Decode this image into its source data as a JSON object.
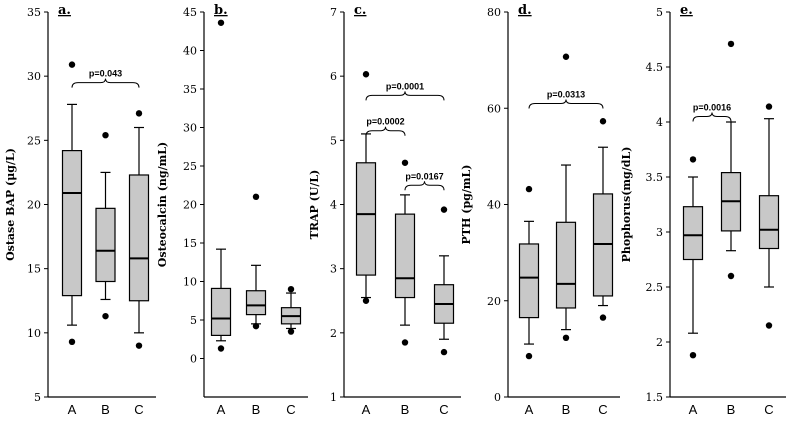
{
  "chart_data": [
    {
      "type": "box",
      "panel_label": "a.",
      "ylabel": "Ostase BAP (μg/L)",
      "ylim": [
        5,
        35
      ],
      "yticks": [
        5,
        10,
        15,
        20,
        25,
        30,
        35
      ],
      "categories": [
        "A",
        "B",
        "C"
      ],
      "boxes": [
        {
          "q1": 12.9,
          "median": 20.9,
          "q3": 24.2,
          "whisker_low": 10.6,
          "whisker_high": 27.8,
          "outliers": [
            9.3,
            30.9
          ]
        },
        {
          "q1": 14.0,
          "median": 16.4,
          "q3": 19.7,
          "whisker_low": 12.6,
          "whisker_high": 22.5,
          "outliers": [
            11.3,
            25.4
          ]
        },
        {
          "q1": 12.5,
          "median": 15.8,
          "q3": 22.3,
          "whisker_low": 10.0,
          "whisker_high": 26.0,
          "outliers": [
            9.0,
            27.1
          ]
        }
      ],
      "comparisons": [
        {
          "from": 0,
          "to": 2,
          "y": 29.5,
          "label": "p=0.043"
        }
      ]
    },
    {
      "type": "box",
      "panel_label": "b.",
      "ylabel": "Osteocalcin (ng/mL)",
      "ylim": [
        -5,
        45
      ],
      "yticks": [
        0,
        5,
        10,
        15,
        20,
        25,
        30,
        35,
        40,
        45
      ],
      "categories": [
        "A",
        "B",
        "C"
      ],
      "boxes": [
        {
          "q1": 3.0,
          "median": 5.2,
          "q3": 9.1,
          "whisker_low": 2.3,
          "whisker_high": 14.2,
          "outliers": [
            1.3,
            43.6
          ]
        },
        {
          "q1": 5.7,
          "median": 6.9,
          "q3": 8.8,
          "whisker_low": 4.5,
          "whisker_high": 12.1,
          "outliers": [
            4.2,
            21.0
          ]
        },
        {
          "q1": 4.5,
          "median": 5.5,
          "q3": 6.6,
          "whisker_low": 3.9,
          "whisker_high": 8.5,
          "outliers": [
            3.5,
            9.0
          ]
        }
      ],
      "comparisons": []
    },
    {
      "type": "box",
      "panel_label": "c.",
      "ylabel": "TRAP (U/L)",
      "ylim": [
        1,
        7
      ],
      "yticks": [
        1,
        2,
        3,
        4,
        5,
        6,
        7
      ],
      "categories": [
        "A",
        "B",
        "C"
      ],
      "boxes": [
        {
          "q1": 2.9,
          "median": 3.85,
          "q3": 4.65,
          "whisker_low": 2.55,
          "whisker_high": 5.1,
          "outliers": [
            2.5,
            6.03
          ]
        },
        {
          "q1": 2.55,
          "median": 2.85,
          "q3": 3.85,
          "whisker_low": 2.12,
          "whisker_high": 4.15,
          "outliers": [
            1.85,
            4.65
          ]
        },
        {
          "q1": 2.15,
          "median": 2.45,
          "q3": 2.75,
          "whisker_low": 1.9,
          "whisker_high": 3.2,
          "outliers": [
            1.7,
            3.92
          ]
        }
      ],
      "comparisons": [
        {
          "from": 0,
          "to": 2,
          "y": 5.7,
          "label": "p=0.0001"
        },
        {
          "from": 0,
          "to": 1,
          "y": 5.15,
          "label": "p=0.0002"
        },
        {
          "from": 1,
          "to": 2,
          "y": 4.3,
          "label": "p=0.0167"
        }
      ]
    },
    {
      "type": "box",
      "panel_label": "d.",
      "ylabel": "PTH (pg/mL)",
      "ylim": [
        0,
        80
      ],
      "yticks": [
        0,
        20,
        40,
        60,
        80
      ],
      "categories": [
        "A",
        "B",
        "C"
      ],
      "boxes": [
        {
          "q1": 16.5,
          "median": 24.8,
          "q3": 31.8,
          "whisker_low": 11.0,
          "whisker_high": 36.5,
          "outliers": [
            8.5,
            43.2
          ]
        },
        {
          "q1": 18.5,
          "median": 23.5,
          "q3": 36.3,
          "whisker_low": 14.0,
          "whisker_high": 48.2,
          "outliers": [
            12.3,
            70.7
          ]
        },
        {
          "q1": 21.0,
          "median": 31.8,
          "q3": 42.2,
          "whisker_low": 19.0,
          "whisker_high": 51.9,
          "outliers": [
            16.5,
            57.3
          ]
        }
      ],
      "comparisons": [
        {
          "from": 0,
          "to": 2,
          "y": 61,
          "label": "p=0.0313"
        }
      ]
    },
    {
      "type": "box",
      "panel_label": "e.",
      "ylabel": "Phophorus(mg/dL)",
      "ylim": [
        1.5,
        5.0
      ],
      "yticks": [
        1.5,
        2.0,
        2.5,
        3.0,
        3.5,
        4.0,
        4.5,
        5.0
      ],
      "categories": [
        "A",
        "B",
        "C"
      ],
      "boxes": [
        {
          "q1": 2.75,
          "median": 2.97,
          "q3": 3.23,
          "whisker_low": 2.08,
          "whisker_high": 3.5,
          "outliers": [
            1.88,
            3.66
          ]
        },
        {
          "q1": 3.01,
          "median": 3.28,
          "q3": 3.54,
          "whisker_low": 2.83,
          "whisker_high": 4.0,
          "outliers": [
            2.6,
            4.71
          ]
        },
        {
          "q1": 2.85,
          "median": 3.02,
          "q3": 3.33,
          "whisker_low": 2.5,
          "whisker_high": 4.03,
          "outliers": [
            2.15,
            4.14
          ]
        }
      ],
      "comparisons": [
        {
          "from": 0,
          "to": 1,
          "y": 4.05,
          "label": "p=0.0016"
        }
      ]
    }
  ]
}
